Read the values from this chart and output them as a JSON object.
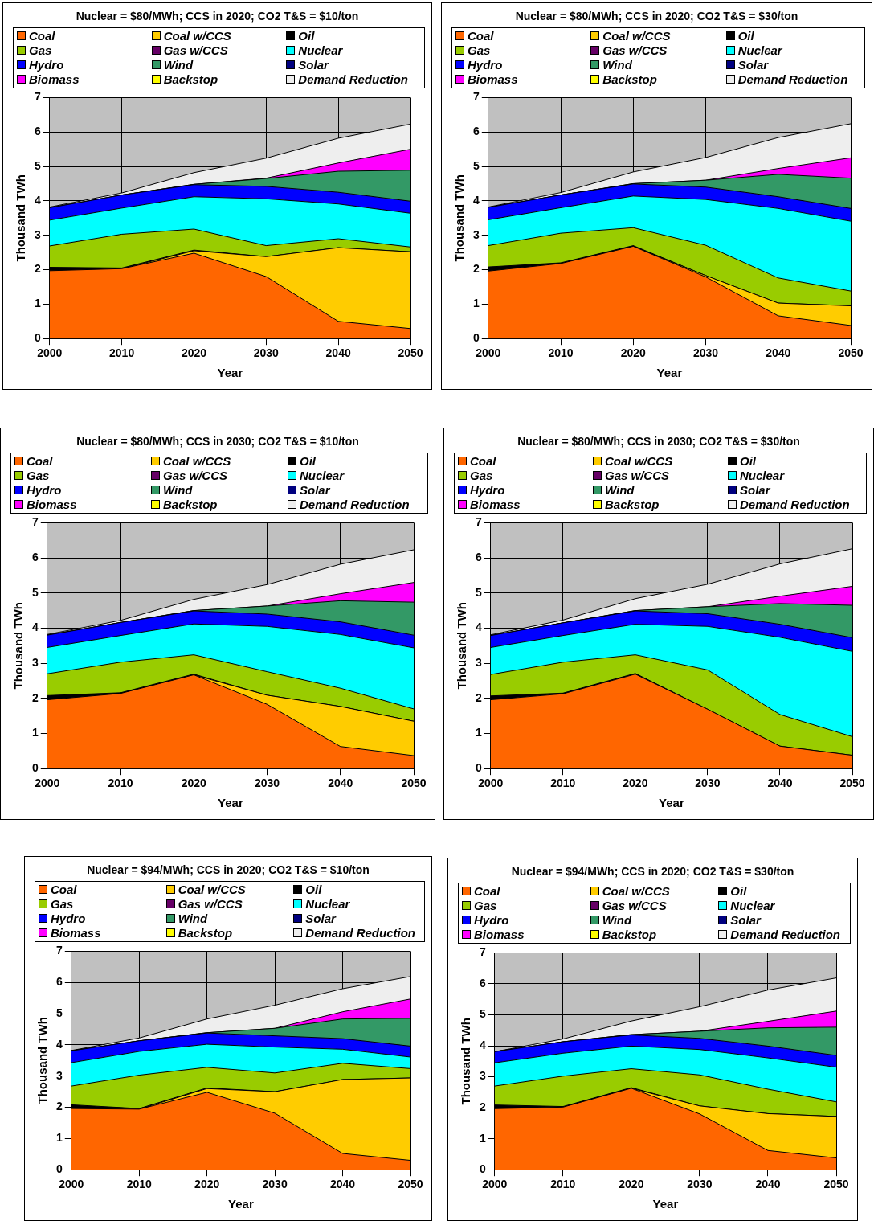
{
  "chart_data": [
    {
      "type": "area",
      "stacked": true,
      "title": "Nuclear = $80/MWh; CCS  in 2020; CO2 T&S = $10/ton",
      "xlabel": "Year",
      "ylabel": "Thousand TWh",
      "x": [
        2000,
        2010,
        2020,
        2030,
        2040,
        2050
      ],
      "xlim": [
        2000,
        2050
      ],
      "xticks": [
        2000,
        2010,
        2020,
        2030,
        2040,
        2050
      ],
      "ylim": [
        0,
        7
      ],
      "yticks": [
        0,
        1,
        2,
        3,
        4,
        5,
        6,
        7
      ],
      "grid": true,
      "legend": "top",
      "series": [
        {
          "name": "Coal",
          "color": "#ff6600",
          "values": [
            1.97,
            2.03,
            2.48,
            1.8,
            0.5,
            0.29
          ]
        },
        {
          "name": "Coal w/CCS",
          "color": "#ffcc00",
          "values": [
            0,
            0,
            0.07,
            0.58,
            2.14,
            2.23
          ]
        },
        {
          "name": "Oil",
          "color": "#000000",
          "values": [
            0.1,
            0.02,
            0.02,
            0,
            0,
            0
          ]
        },
        {
          "name": "Gas",
          "color": "#99cc00",
          "values": [
            0.62,
            0.98,
            0.61,
            0.32,
            0.26,
            0.14
          ]
        },
        {
          "name": "Gas w/CCS",
          "color": "#660066",
          "values": [
            null,
            null,
            null,
            null,
            null,
            null
          ]
        },
        {
          "name": "Nuclear",
          "color": "#00ffff",
          "values": [
            0.75,
            0.76,
            0.94,
            1.36,
            1.01,
            0.98
          ]
        },
        {
          "name": "Hydro",
          "color": "#0000ff",
          "values": [
            0.36,
            0.38,
            0.35,
            0.36,
            0.34,
            0.35
          ]
        },
        {
          "name": "Wind",
          "color": "#339966",
          "values": [
            0,
            0,
            0.01,
            0.23,
            0.61,
            0.9
          ]
        },
        {
          "name": "Solar",
          "color": "#000080",
          "values": [
            null,
            null,
            null,
            null,
            null,
            null
          ]
        },
        {
          "name": "Biomass",
          "color": "#ff00ff",
          "values": [
            0,
            0,
            0,
            0.01,
            0.24,
            0.61
          ]
        },
        {
          "name": "Backstop",
          "color": "#ffff00",
          "values": [
            null,
            null,
            null,
            null,
            null,
            null
          ]
        },
        {
          "name": "Demand Reduction",
          "color": "#eeeeee",
          "values": [
            0.02,
            0.06,
            0.34,
            0.58,
            0.72,
            0.73
          ]
        }
      ]
    },
    {
      "type": "area",
      "stacked": true,
      "title": "Nuclear = $80/MWh; CCS  in 2020; CO2 T&S = $30/ton",
      "xlabel": "Year",
      "ylabel": "Thousand TWh",
      "x": [
        2000,
        2010,
        2020,
        2030,
        2040,
        2050
      ],
      "xlim": [
        2000,
        2050
      ],
      "xticks": [
        2000,
        2010,
        2020,
        2030,
        2040,
        2050
      ],
      "ylim": [
        0,
        7
      ],
      "yticks": [
        0,
        1,
        2,
        3,
        4,
        5,
        6,
        7
      ],
      "grid": true,
      "legend": "top",
      "series": [
        {
          "name": "Coal",
          "color": "#ff6600",
          "values": [
            1.96,
            2.18,
            2.68,
            1.79,
            0.66,
            0.38
          ]
        },
        {
          "name": "Coal w/CCS",
          "color": "#ffcc00",
          "values": [
            0,
            0,
            0,
            0.04,
            0.37,
            0.57
          ]
        },
        {
          "name": "Oil",
          "color": "#000000",
          "values": [
            0.12,
            0.02,
            0.02,
            0,
            0,
            0
          ]
        },
        {
          "name": "Gas",
          "color": "#99cc00",
          "values": [
            0.62,
            0.86,
            0.52,
            0.88,
            0.73,
            0.43
          ]
        },
        {
          "name": "Gas w/CCS",
          "color": "#660066",
          "values": [
            null,
            null,
            null,
            null,
            null,
            null
          ]
        },
        {
          "name": "Nuclear",
          "color": "#00ffff",
          "values": [
            0.75,
            0.74,
            0.92,
            1.33,
            2.02,
            2.03
          ]
        },
        {
          "name": "Hydro",
          "color": "#0000ff",
          "values": [
            0.36,
            0.37,
            0.35,
            0.36,
            0.34,
            0.37
          ]
        },
        {
          "name": "Wind",
          "color": "#339966",
          "values": [
            0,
            0,
            0.01,
            0.2,
            0.65,
            0.88
          ]
        },
        {
          "name": "Solar",
          "color": "#000080",
          "values": [
            null,
            null,
            null,
            null,
            null,
            null
          ]
        },
        {
          "name": "Biomass",
          "color": "#ff00ff",
          "values": [
            0,
            0,
            0,
            0,
            0.17,
            0.59
          ]
        },
        {
          "name": "Backstop",
          "color": "#ffff00",
          "values": [
            null,
            null,
            null,
            null,
            null,
            null
          ]
        },
        {
          "name": "Demand Reduction",
          "color": "#eeeeee",
          "values": [
            0.01,
            0.07,
            0.34,
            0.66,
            0.9,
            0.99
          ]
        }
      ]
    },
    {
      "type": "area",
      "stacked": true,
      "title": "Nuclear = $80/MWh; CCS  in 2030; CO2 T&S = $10/ton",
      "xlabel": "Year",
      "ylabel": "Thousand TWh",
      "x": [
        2000,
        2010,
        2020,
        2030,
        2040,
        2050
      ],
      "xlim": [
        2000,
        2050
      ],
      "xticks": [
        2000,
        2010,
        2020,
        2030,
        2040,
        2050
      ],
      "ylim": [
        0,
        7
      ],
      "yticks": [
        0,
        1,
        2,
        3,
        4,
        5,
        6,
        7
      ],
      "grid": true,
      "legend": "top",
      "series": [
        {
          "name": "Coal",
          "color": "#ff6600",
          "values": [
            1.96,
            2.14,
            2.67,
            1.83,
            0.63,
            0.37
          ]
        },
        {
          "name": "Coal w/CCS",
          "color": "#ffcc00",
          "values": [
            0,
            0,
            0,
            0.26,
            1.14,
            0.98
          ]
        },
        {
          "name": "Oil",
          "color": "#000000",
          "values": [
            0.12,
            0.02,
            0.02,
            0,
            0,
            0
          ]
        },
        {
          "name": "Gas",
          "color": "#99cc00",
          "values": [
            0.62,
            0.87,
            0.55,
            0.67,
            0.52,
            0.35
          ]
        },
        {
          "name": "Gas w/CCS",
          "color": "#660066",
          "values": [
            null,
            null,
            null,
            null,
            null,
            null
          ]
        },
        {
          "name": "Nuclear",
          "color": "#00ffff",
          "values": [
            0.75,
            0.76,
            0.88,
            1.29,
            1.53,
            1.74
          ]
        },
        {
          "name": "Hydro",
          "color": "#0000ff",
          "values": [
            0.35,
            0.37,
            0.37,
            0.35,
            0.36,
            0.36
          ]
        },
        {
          "name": "Wind",
          "color": "#339966",
          "values": [
            0,
            0,
            0.01,
            0.23,
            0.6,
            0.94
          ]
        },
        {
          "name": "Solar",
          "color": "#000080",
          "values": [
            null,
            null,
            null,
            null,
            null,
            null
          ]
        },
        {
          "name": "Biomass",
          "color": "#ff00ff",
          "values": [
            0,
            0,
            0,
            0,
            0.2,
            0.56
          ]
        },
        {
          "name": "Backstop",
          "color": "#ffff00",
          "values": [
            null,
            null,
            null,
            null,
            null,
            null
          ]
        },
        {
          "name": "Demand Reduction",
          "color": "#eeeeee",
          "values": [
            0.02,
            0.06,
            0.32,
            0.61,
            0.84,
            0.93
          ]
        }
      ]
    },
    {
      "type": "area",
      "stacked": true,
      "title": "Nuclear = $80/MWh; CCS  in 2030; CO2 T&S = $30/ton",
      "xlabel": "Year",
      "ylabel": "Thousand TWh",
      "x": [
        2000,
        2010,
        2020,
        2030,
        2040,
        2050
      ],
      "xlim": [
        2000,
        2050
      ],
      "xticks": [
        2000,
        2010,
        2020,
        2030,
        2040,
        2050
      ],
      "ylim": [
        0,
        7
      ],
      "yticks": [
        0,
        1,
        2,
        3,
        4,
        5,
        6,
        7
      ],
      "grid": true,
      "legend": "top",
      "series": [
        {
          "name": "Coal",
          "color": "#ff6600",
          "values": [
            1.96,
            2.13,
            2.69,
            1.69,
            0.64,
            0.38
          ]
        },
        {
          "name": "Coal w/CCS",
          "color": "#ffcc00",
          "values": [
            null,
            null,
            null,
            null,
            null,
            null
          ]
        },
        {
          "name": "Oil",
          "color": "#000000",
          "values": [
            0.11,
            0.02,
            0.02,
            0,
            0,
            0
          ]
        },
        {
          "name": "Gas",
          "color": "#99cc00",
          "values": [
            0.61,
            0.88,
            0.53,
            1.12,
            0.9,
            0.53
          ]
        },
        {
          "name": "Gas w/CCS",
          "color": "#660066",
          "values": [
            null,
            null,
            null,
            null,
            null,
            null
          ]
        },
        {
          "name": "Nuclear",
          "color": "#00ffff",
          "values": [
            0.77,
            0.76,
            0.87,
            1.24,
            2.2,
            2.43
          ]
        },
        {
          "name": "Hydro",
          "color": "#0000ff",
          "values": [
            0.34,
            0.36,
            0.38,
            0.36,
            0.37,
            0.39
          ]
        },
        {
          "name": "Wind",
          "color": "#339966",
          "values": [
            0,
            0,
            0.01,
            0.2,
            0.59,
            0.92
          ]
        },
        {
          "name": "Solar",
          "color": "#000080",
          "values": [
            null,
            null,
            null,
            null,
            null,
            null
          ]
        },
        {
          "name": "Biomass",
          "color": "#ff00ff",
          "values": [
            0,
            0,
            0,
            0,
            0.21,
            0.54
          ]
        },
        {
          "name": "Backstop",
          "color": "#ffff00",
          "values": [
            null,
            null,
            null,
            null,
            null,
            null
          ]
        },
        {
          "name": "Demand Reduction",
          "color": "#eeeeee",
          "values": [
            0.02,
            0.08,
            0.34,
            0.64,
            0.92,
            1.07
          ]
        }
      ]
    },
    {
      "type": "area",
      "stacked": true,
      "title": "Nuclear = $94/MWh; CCS  in 2020; CO2 T&S = $10/ton",
      "xlabel": "Year",
      "ylabel": "Thousand TWh",
      "x": [
        2000,
        2010,
        2020,
        2030,
        2040,
        2050
      ],
      "xlim": [
        2000,
        2050
      ],
      "xticks": [
        2000,
        2010,
        2020,
        2030,
        2040,
        2050
      ],
      "ylim": [
        0,
        7
      ],
      "yticks": [
        0,
        1,
        2,
        3,
        4,
        5,
        6,
        7
      ],
      "grid": true,
      "legend": "top",
      "series": [
        {
          "name": "Coal",
          "color": "#ff6600",
          "values": [
            1.96,
            1.94,
            2.48,
            1.81,
            0.52,
            0.3
          ]
        },
        {
          "name": "Coal w/CCS",
          "color": "#ffcc00",
          "values": [
            0,
            0,
            0.12,
            0.69,
            2.37,
            2.64
          ]
        },
        {
          "name": "Oil",
          "color": "#000000",
          "values": [
            0.12,
            0.02,
            0.02,
            0,
            0,
            0
          ]
        },
        {
          "name": "Gas",
          "color": "#99cc00",
          "values": [
            0.6,
            1.07,
            0.66,
            0.6,
            0.52,
            0.3
          ]
        },
        {
          "name": "Gas w/CCS",
          "color": "#660066",
          "values": [
            null,
            null,
            null,
            null,
            null,
            null
          ]
        },
        {
          "name": "Nuclear",
          "color": "#00ffff",
          "values": [
            0.75,
            0.76,
            0.74,
            0.83,
            0.45,
            0.37
          ]
        },
        {
          "name": "Hydro",
          "color": "#0000ff",
          "values": [
            0.38,
            0.34,
            0.36,
            0.36,
            0.34,
            0.35
          ]
        },
        {
          "name": "Wind",
          "color": "#339966",
          "values": [
            0,
            0,
            0.01,
            0.24,
            0.63,
            0.89
          ]
        },
        {
          "name": "Solar",
          "color": "#000080",
          "values": [
            null,
            null,
            null,
            null,
            null,
            null
          ]
        },
        {
          "name": "Biomass",
          "color": "#ff00ff",
          "values": [
            0,
            0,
            0,
            0,
            0.23,
            0.62
          ]
        },
        {
          "name": "Backstop",
          "color": "#ffff00",
          "values": [
            null,
            null,
            null,
            null,
            null,
            null
          ]
        },
        {
          "name": "Demand Reduction",
          "color": "#eeeeee",
          "values": [
            0.01,
            0.09,
            0.44,
            0.74,
            0.74,
            0.72
          ]
        }
      ]
    },
    {
      "type": "area",
      "stacked": true,
      "title": "Nuclear = $94/MWh; CCS  in 2020; CO2 T&S = $30/ton",
      "xlabel": "Year",
      "ylabel": "Thousand TWh",
      "x": [
        2000,
        2010,
        2020,
        2030,
        2040,
        2050
      ],
      "xlim": [
        2000,
        2050
      ],
      "xticks": [
        2000,
        2010,
        2020,
        2030,
        2040,
        2050
      ],
      "ylim": [
        0,
        7
      ],
      "yticks": [
        0,
        1,
        2,
        3,
        4,
        5,
        6,
        7
      ],
      "grid": true,
      "legend": "top",
      "series": [
        {
          "name": "Coal",
          "color": "#ff6600",
          "values": [
            1.97,
            2.02,
            2.63,
            1.8,
            0.62,
            0.38
          ]
        },
        {
          "name": "Coal w/CCS",
          "color": "#ffcc00",
          "values": [
            0,
            0,
            0,
            0.26,
            1.19,
            1.34
          ]
        },
        {
          "name": "Oil",
          "color": "#000000",
          "values": [
            0.12,
            0.02,
            0.02,
            0,
            0,
            0
          ]
        },
        {
          "name": "Gas",
          "color": "#99cc00",
          "values": [
            0.61,
            0.98,
            0.61,
            1.0,
            0.79,
            0.47
          ]
        },
        {
          "name": "Gas w/CCS",
          "color": "#660066",
          "values": [
            null,
            null,
            null,
            null,
            null,
            null
          ]
        },
        {
          "name": "Nuclear",
          "color": "#00ffff",
          "values": [
            0.75,
            0.74,
            0.73,
            0.82,
            1.01,
            1.12
          ]
        },
        {
          "name": "Hydro",
          "color": "#0000ff",
          "values": [
            0.36,
            0.37,
            0.36,
            0.36,
            0.38,
            0.38
          ]
        },
        {
          "name": "Wind",
          "color": "#339966",
          "values": [
            0,
            0,
            0.01,
            0.23,
            0.59,
            0.91
          ]
        },
        {
          "name": "Solar",
          "color": "#000080",
          "values": [
            null,
            null,
            null,
            null,
            null,
            null
          ]
        },
        {
          "name": "Biomass",
          "color": "#ff00ff",
          "values": [
            0,
            0,
            0,
            0,
            0.21,
            0.52
          ]
        },
        {
          "name": "Backstop",
          "color": "#ffff00",
          "values": [
            null,
            null,
            null,
            null,
            null,
            null
          ]
        },
        {
          "name": "Demand Reduction",
          "color": "#eeeeee",
          "values": [
            0,
            0.09,
            0.44,
            0.79,
            1.01,
            1.07
          ]
        }
      ]
    }
  ]
}
